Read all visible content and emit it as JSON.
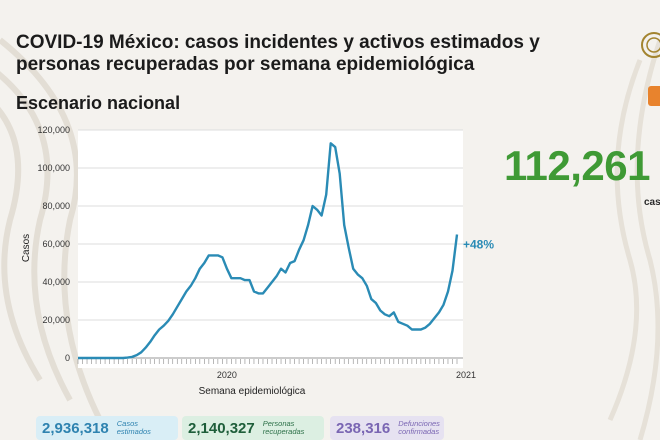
{
  "header": {
    "title": "COVID-19 México: casos incidentes y activos estimados y personas recuperadas por semana epidemiológica",
    "subtitle": "Escenario nacional"
  },
  "headline": {
    "value": "112,261 (",
    "label": "cas"
  },
  "stats": [
    {
      "value": "2,936,318",
      "label": "Casos\nestimados"
    },
    {
      "value": "2,140,327",
      "label": "Personas\nrecuperadas"
    },
    {
      "value": "238,316",
      "label": "Defunciones\nconfirmadas"
    }
  ],
  "colors": {
    "line": "#2a8bb5",
    "headline": "#3f9a35",
    "accent_orange": "#e8832d"
  },
  "chart_data": {
    "type": "line",
    "title": "",
    "xlabel": "Semana epidemiológica",
    "ylabel": "Casos",
    "ylim": [
      0,
      120000
    ],
    "yticks": [
      0,
      20000,
      40000,
      60000,
      80000,
      100000,
      120000
    ],
    "ytick_labels": [
      "0",
      "20,000",
      "40,000",
      "60,000",
      "80,000",
      "100,000",
      "120,000"
    ],
    "xtick_labels": [
      {
        "label": "2020",
        "week_index": 33
      },
      {
        "label": "2021",
        "week_index": 86
      }
    ],
    "grid": true,
    "annotation": {
      "text": "+48%",
      "week_index": 103
    },
    "series": [
      {
        "values": [
          0,
          0,
          0,
          0,
          0,
          0,
          0,
          0,
          0,
          0,
          0,
          200,
          600,
          1500,
          3000,
          5500,
          8500,
          12000,
          15000,
          17000,
          19500,
          23000,
          27000,
          31000,
          35000,
          38000,
          42000,
          47000,
          50000,
          54000,
          54000,
          54000,
          53000,
          47000,
          42000,
          42000,
          42000,
          41000,
          41000,
          35000,
          34000,
          34000,
          37000,
          40000,
          43000,
          47000,
          45000,
          50000,
          51000,
          57000,
          62000,
          70000,
          80000,
          78000,
          75000,
          86000,
          113000,
          111000,
          97000,
          70000,
          58000,
          47000,
          44000,
          42000,
          38000,
          31000,
          29000,
          25000,
          23000,
          22000,
          24000,
          19000,
          18000,
          17000,
          15000,
          15000,
          15000,
          16000,
          18000,
          21000,
          24000,
          28000,
          35000,
          46000,
          65000
        ]
      }
    ]
  }
}
